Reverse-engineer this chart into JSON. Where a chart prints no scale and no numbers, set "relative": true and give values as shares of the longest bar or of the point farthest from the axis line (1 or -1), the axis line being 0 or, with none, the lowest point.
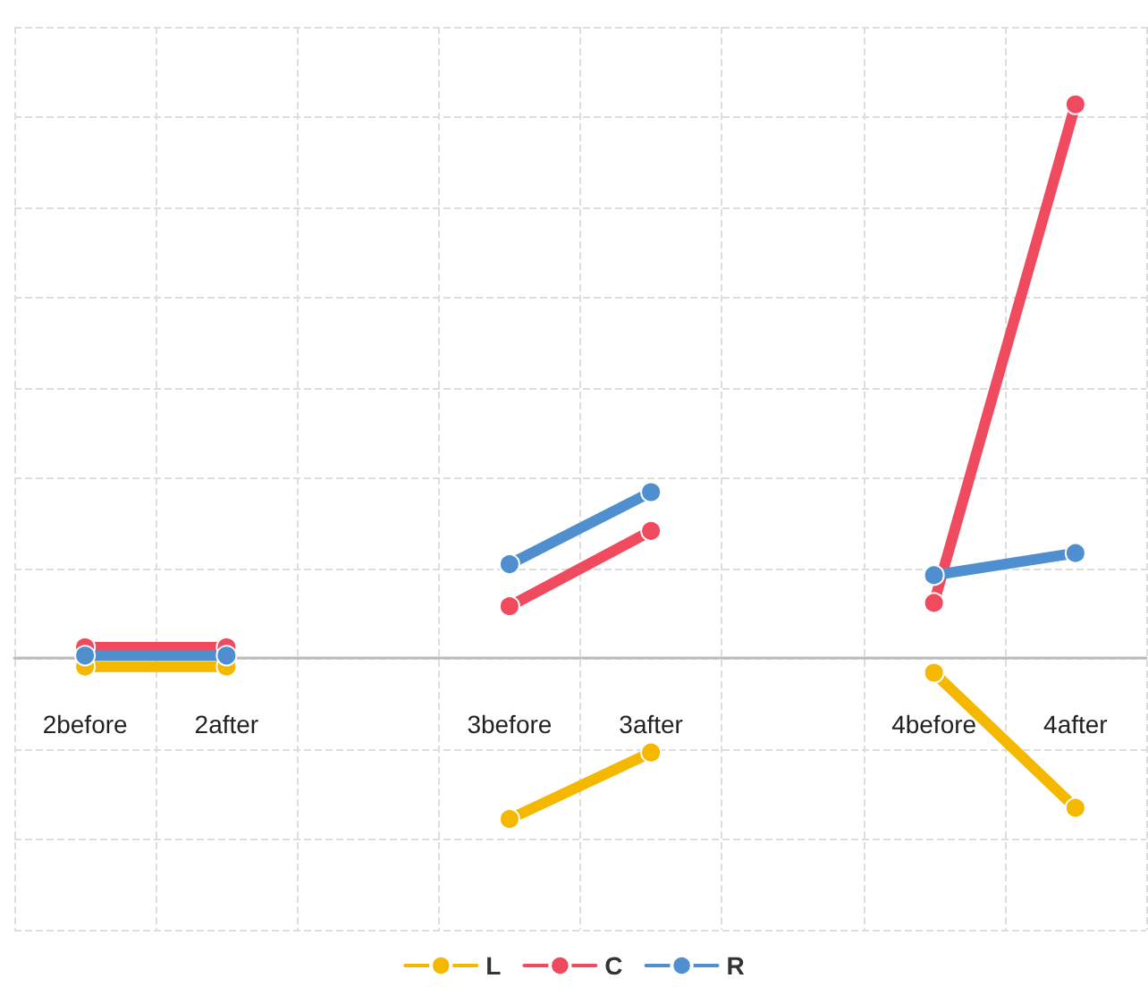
{
  "chart_data": {
    "type": "line",
    "relative": true,
    "categories": [
      "2before",
      "2after",
      null,
      "3before",
      "3after",
      null,
      "4before",
      "4after"
    ],
    "series": [
      {
        "name": "L",
        "color": "#f5b800",
        "values": [
          -0.015,
          -0.015,
          null,
          -0.29,
          -0.17,
          null,
          -0.026,
          -0.27
        ]
      },
      {
        "name": "C",
        "color": "#f04a5f",
        "values": [
          0.02,
          0.02,
          null,
          0.094,
          0.23,
          null,
          0.1,
          1
        ]
      },
      {
        "name": "R",
        "color": "#4f8fd0",
        "values": [
          0.005,
          0.005,
          null,
          0.17,
          0.3,
          null,
          0.15,
          0.19
        ]
      }
    ],
    "grid": true,
    "legend": "bottom",
    "marker": "circle",
    "line_style": "solid"
  }
}
